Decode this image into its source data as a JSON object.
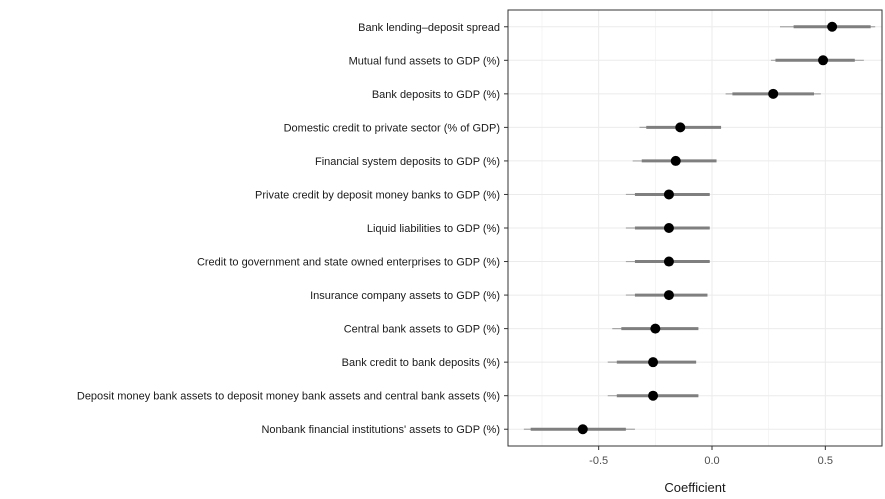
{
  "chart_data": {
    "type": "scatter",
    "subtype": "coefficient-plot",
    "title": "",
    "xlabel": "Coefficient",
    "ylabel": "",
    "xlim": [
      -0.9,
      0.75
    ],
    "xticks": [
      -0.5,
      0.0,
      0.5
    ],
    "xtick_labels": [
      "-0.5",
      "0.0",
      "0.5"
    ],
    "grid": true,
    "legend": "none",
    "colors": {
      "point": "#000000",
      "inner_interval": "#7f7f7f",
      "outer_interval": "#a6a6a6",
      "grid": "#ebebeb",
      "frame": "#333333"
    },
    "series": [
      {
        "categories": [
          "Bank lending–deposit spread",
          "Mutual fund assets to GDP (%)",
          "Bank deposits to GDP (%)",
          "Domestic credit to private sector (% of GDP)",
          "Financial system deposits to GDP (%)",
          "Private credit by deposit money banks to GDP (%)",
          "Liquid liabilities to GDP (%)",
          "Credit to government and state owned enterprises to GDP (%)",
          "Insurance company assets to GDP (%)",
          "Central bank assets to GDP (%)",
          "Bank credit to bank deposits (%)",
          "Deposit money bank assets to deposit money bank assets and central bank assets (%)",
          "Nonbank financial institutions' assets to GDP (%)"
        ],
        "estimate": [
          0.53,
          0.49,
          0.27,
          -0.14,
          -0.16,
          -0.19,
          -0.19,
          -0.19,
          -0.19,
          -0.25,
          -0.26,
          -0.26,
          -0.57
        ],
        "inner_low": [
          0.36,
          0.28,
          0.09,
          -0.29,
          -0.31,
          -0.34,
          -0.34,
          -0.34,
          -0.34,
          -0.4,
          -0.42,
          -0.42,
          -0.8
        ],
        "inner_high": [
          0.7,
          0.63,
          0.45,
          0.04,
          0.02,
          -0.01,
          -0.01,
          -0.01,
          -0.02,
          -0.06,
          -0.07,
          -0.06,
          -0.38
        ],
        "outer_low": [
          0.3,
          0.26,
          0.06,
          -0.32,
          -0.35,
          -0.38,
          -0.38,
          -0.38,
          -0.38,
          -0.44,
          -0.46,
          -0.46,
          -0.83
        ],
        "outer_high": [
          0.72,
          0.67,
          0.48,
          0.04,
          0.02,
          -0.01,
          -0.01,
          -0.01,
          -0.02,
          -0.06,
          -0.07,
          -0.06,
          -0.34
        ]
      }
    ]
  }
}
